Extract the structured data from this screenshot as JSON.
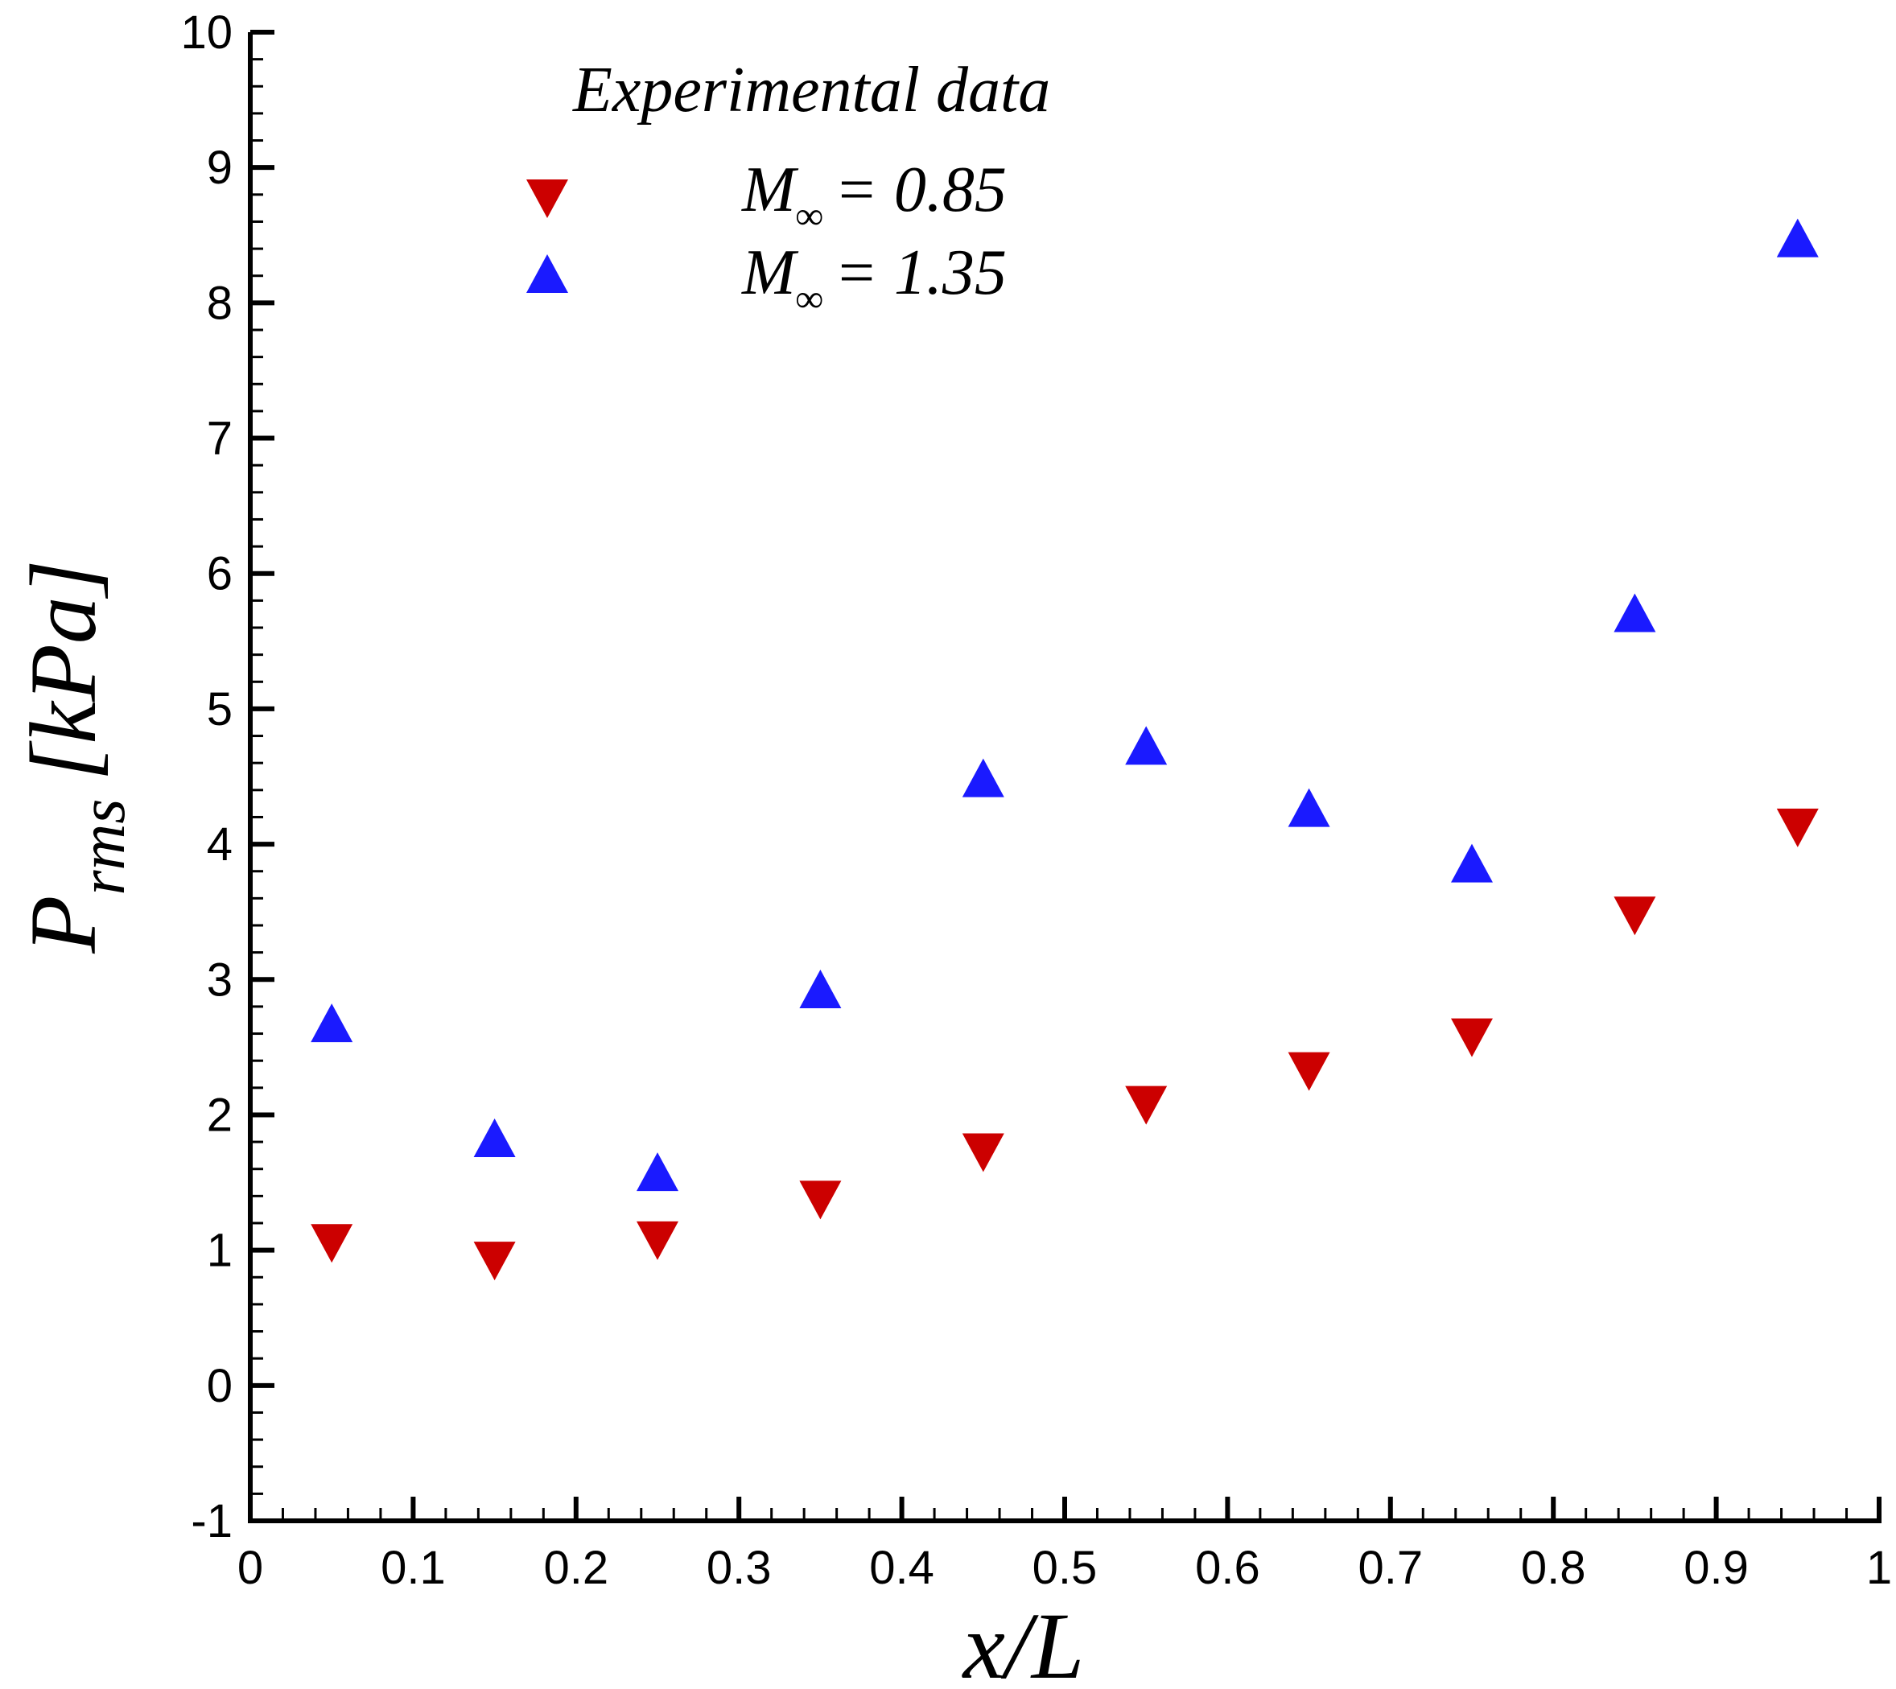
{
  "chart_data": {
    "type": "scatter",
    "xlabel": "x/L",
    "ylabel_main": "P",
    "ylabel_sub": "rms",
    "ylabel_unit": "[kPa]",
    "xlim": [
      0,
      1
    ],
    "ylim": [
      -1,
      10
    ],
    "x_ticks": [
      "0",
      "0.1",
      "0.2",
      "0.3",
      "0.4",
      "0.5",
      "0.6",
      "0.7",
      "0.8",
      "0.9",
      "1"
    ],
    "y_ticks": [
      "-1",
      "0",
      "1",
      "2",
      "3",
      "4",
      "5",
      "6",
      "7",
      "8",
      "9",
      "10"
    ],
    "grid": false,
    "legend": {
      "title": "Experimental data",
      "placement": "top-left",
      "entries": [
        {
          "symbol": "M",
          "subscript": "∞",
          "value_text": "= 0.85"
        },
        {
          "symbol": "M",
          "subscript": "∞",
          "value_text": "= 1.35"
        }
      ]
    },
    "series": [
      {
        "marker": "triangle-down",
        "color": "#cc0000",
        "x": [
          0.05,
          0.15,
          0.25,
          0.35,
          0.45,
          0.55,
          0.65,
          0.75,
          0.85,
          0.95
        ],
        "y": [
          1.05,
          0.92,
          1.07,
          1.37,
          1.72,
          2.07,
          2.32,
          2.57,
          3.47,
          4.12
        ]
      },
      {
        "marker": "triangle-up",
        "color": "#1a1aff",
        "x": [
          0.05,
          0.15,
          0.25,
          0.35,
          0.45,
          0.55,
          0.65,
          0.75,
          0.85,
          0.95
        ],
        "y": [
          2.68,
          1.83,
          1.58,
          2.93,
          4.49,
          4.73,
          4.27,
          3.86,
          5.71,
          8.48
        ]
      }
    ]
  }
}
